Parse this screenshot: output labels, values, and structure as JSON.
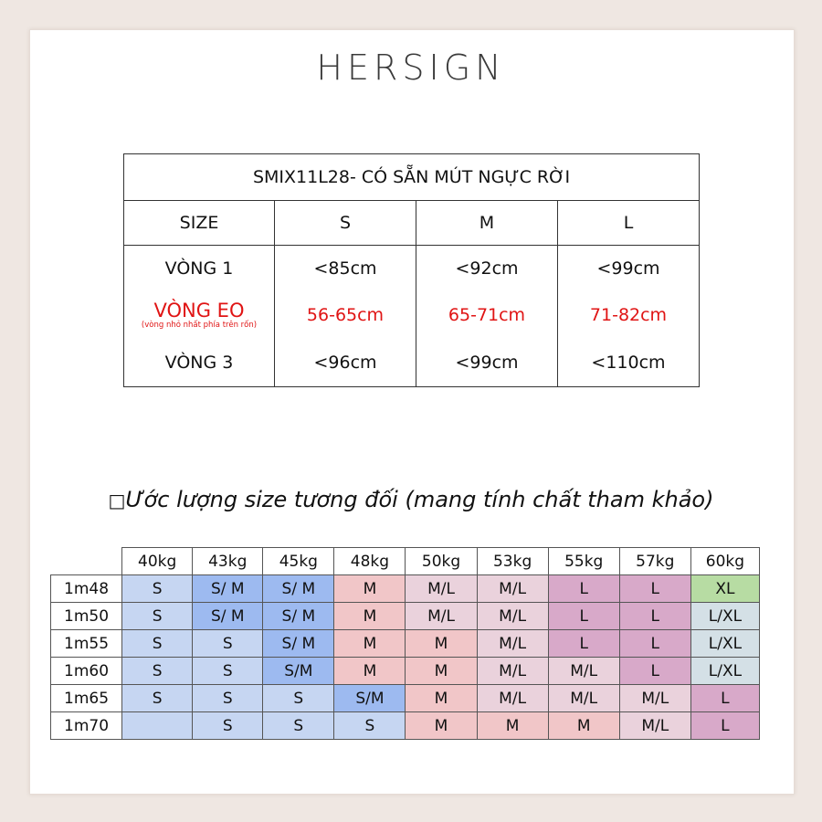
{
  "brand": "HERSIGN",
  "size_table": {
    "title": "SMIX11L28- CÓ SẴN MÚT NGỰC RỜI",
    "header_label": "SIZE",
    "sizes": [
      "S",
      "M",
      "L"
    ],
    "rows": [
      {
        "label": "VÒNG 1",
        "note": "",
        "values": [
          "<85cm",
          "<92cm",
          "<99cm"
        ],
        "highlight": false
      },
      {
        "label": "VÒNG EO",
        "note": "(vòng nhỏ nhất phía trên rốn)",
        "values": [
          "56-65cm",
          "65-71cm",
          "71-82cm"
        ],
        "highlight": true
      },
      {
        "label": "VÒNG 3",
        "note": "",
        "values": [
          "<96cm",
          "<99cm",
          "<110cm"
        ],
        "highlight": false
      }
    ],
    "highlight_color": "#e01414"
  },
  "estimate": {
    "title_prefix": "□",
    "title": "Ước lượng size tương đối (mang tính chất tham khảo)",
    "weights": [
      "40kg",
      "43kg",
      "45kg",
      "48kg",
      "50kg",
      "53kg",
      "55kg",
      "57kg",
      "60kg"
    ],
    "heights": [
      "1m48",
      "1m50",
      "1m55",
      "1m60",
      "1m65",
      "1m70"
    ],
    "cells": [
      [
        "S",
        "S/ M",
        "S/ M",
        "M",
        "M/L",
        "M/L",
        "L",
        "L",
        "XL"
      ],
      [
        "S",
        "S/ M",
        "S/ M",
        "M",
        "M/L",
        "M/L",
        "L",
        "L",
        "L/XL"
      ],
      [
        "S",
        "S",
        "S/ M",
        "M",
        "M",
        "M/L",
        "L",
        "L",
        "L/XL"
      ],
      [
        "S",
        "S",
        "S/M",
        "M",
        "M",
        "M/L",
        "M/L",
        "L",
        "L/XL"
      ],
      [
        "S",
        "S",
        "S",
        "S/M",
        "M",
        "M/L",
        "M/L",
        "M/L",
        "L"
      ],
      [
        "",
        "S",
        "S",
        "S",
        "M",
        "M",
        "M",
        "M/L",
        "L"
      ]
    ],
    "colors": {
      "S": "#c6d6f2",
      "S/M": "#9dbaf0",
      "M": "#f1c6c8",
      "M/L": "#ead2dc",
      "L": "#d8a9c9",
      "L/XL": "#d4e0e6",
      "XL": "#b7dca3"
    },
    "cell_colors": [
      [
        "S",
        "S/M",
        "S/M",
        "M",
        "M/L",
        "M/L",
        "L",
        "L",
        "XL"
      ],
      [
        "S",
        "S/M",
        "S/M",
        "M",
        "M/L",
        "M/L",
        "L",
        "L",
        "L/XL"
      ],
      [
        "S",
        "S",
        "S/M",
        "M",
        "M",
        "M/L",
        "L",
        "L",
        "L/XL"
      ],
      [
        "S",
        "S",
        "S/M",
        "M",
        "M",
        "M/L",
        "M/L",
        "L",
        "L/XL"
      ],
      [
        "S",
        "S",
        "S",
        "S/M",
        "M",
        "M/L",
        "M/L",
        "M/L",
        "L"
      ],
      [
        "S",
        "S",
        "S",
        "S",
        "M",
        "M",
        "M",
        "M/L",
        "L"
      ]
    ]
  }
}
